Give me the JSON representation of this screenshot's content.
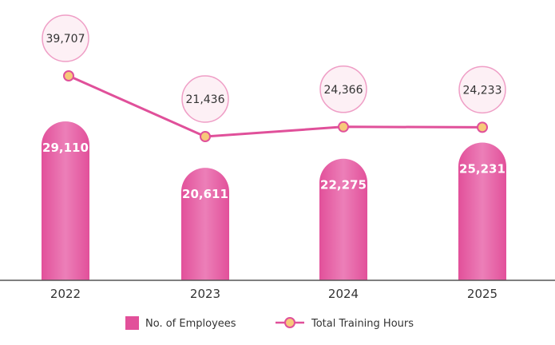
{
  "chart_data": {
    "type": "bar",
    "categories": [
      "2022",
      "2023",
      "2024",
      "2025"
    ],
    "series": [
      {
        "name": "No. of Employees",
        "type": "bar",
        "values": [
          29110,
          20611,
          22275,
          25231
        ],
        "labels": [
          "29,110",
          "20,611",
          "22,275",
          "25,231"
        ]
      },
      {
        "name": "Total Training Hours",
        "type": "line",
        "values": [
          39707,
          21436,
          24366,
          24233
        ],
        "labels": [
          "39,707",
          "21,436",
          "24,366",
          "24,233"
        ]
      }
    ],
    "legend": "bottom-center",
    "grid": false,
    "bar_range": [
      0,
      30000
    ],
    "line_range": [
      0,
      40000
    ]
  },
  "colors": {
    "bar": "#e2509a",
    "bar_highlight": "#ec7fb8",
    "line": "#e0509a",
    "marker_fill": "#f7c97a",
    "bubble_fill": "#fdf0f5",
    "bubble_stroke": "#ef9ec6",
    "axis": "#555555"
  }
}
